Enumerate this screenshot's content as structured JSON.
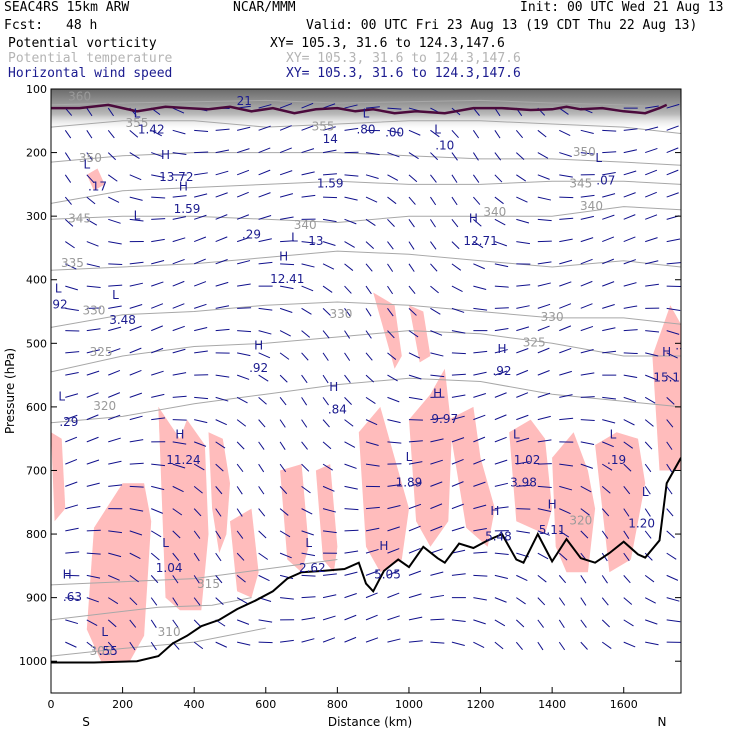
{
  "header": {
    "model": "SEAC4RS 15km ARW",
    "org": "NCAR/MMM",
    "init": "Init: 00 UTC Wed 21 Aug 13",
    "fcst_label": "Fcst:",
    "fcst_value": "48 h",
    "valid": "Valid: 00 UTC Fri 23 Aug 13 (19 CDT Thu 22 Aug 13)",
    "fields": [
      {
        "name": "Potential vorticity",
        "xy": "XY= 105.3, 31.6 to 124.3,147.6",
        "color": "#000000"
      },
      {
        "name": "Potential temperature",
        "xy": "XY= 105.3, 31.6 to 124.3,147.6",
        "color": "#b4b4b4"
      },
      {
        "name": "Horizontal wind speed",
        "xy": "XY= 105.3, 31.6 to 124.3,147.6",
        "color": "#1b1b8f"
      }
    ]
  },
  "chart_data": {
    "type": "cross-section",
    "xlabel": "Distance (km)",
    "ylabel": "Pressure (hPa)",
    "xlim": [
      0,
      1760
    ],
    "ylim": [
      1050,
      100
    ],
    "x_ticks": [
      0,
      200,
      400,
      600,
      800,
      1000,
      1200,
      1400,
      1600
    ],
    "y_ticks": [
      100,
      200,
      300,
      400,
      500,
      600,
      700,
      800,
      900,
      1000
    ],
    "end_labels": {
      "left": "S",
      "right": "N"
    },
    "colors": {
      "pv_shade": "#ffbcbc",
      "pv_contour": "#4b0a3c",
      "theta": "#a8a8a8",
      "wind": "#10108c",
      "terrain": "#000000"
    },
    "terrain": {
      "x": [
        0,
        120,
        240,
        300,
        340,
        380,
        420,
        470,
        520,
        570,
        620,
        660,
        700,
        760,
        820,
        860,
        880,
        900,
        930,
        970,
        1000,
        1040,
        1080,
        1100,
        1140,
        1180,
        1220,
        1260,
        1300,
        1320,
        1360,
        1400,
        1440,
        1480,
        1520,
        1560,
        1600,
        1640,
        1660,
        1700,
        1720,
        1760
      ],
      "p": [
        1002,
        1002,
        1000,
        992,
        972,
        960,
        945,
        935,
        918,
        905,
        890,
        870,
        860,
        858,
        855,
        845,
        878,
        890,
        858,
        840,
        852,
        820,
        838,
        845,
        815,
        822,
        810,
        800,
        840,
        845,
        800,
        843,
        808,
        838,
        845,
        830,
        812,
        832,
        837,
        810,
        720,
        680
      ]
    },
    "theta_isentropes": [
      {
        "value": 305,
        "x": [
          0,
          200,
          400,
          600
        ],
        "p": [
          992,
          980,
          970,
          948
        ]
      },
      {
        "value": 310,
        "x": [
          0,
          150,
          300,
          450,
          560
        ],
        "p": [
          935,
          925,
          915,
          912,
          900
        ]
      },
      {
        "value": 315,
        "x": [
          0,
          200,
          400,
          600,
          800
        ],
        "p": [
          880,
          875,
          870,
          855,
          840
        ]
      },
      {
        "value": 320,
        "x": [
          0,
          200,
          400,
          600,
          800,
          1000,
          1200,
          1400,
          1760
        ],
        "p": [
          625,
          615,
          595,
          580,
          565,
          555,
          560,
          580,
          600
        ]
      },
      {
        "value": 325,
        "x": [
          0,
          200,
          400,
          600,
          800,
          1000,
          1200,
          1400,
          1600,
          1760
        ],
        "p": [
          545,
          520,
          505,
          500,
          490,
          480,
          485,
          500,
          520,
          520
        ]
      },
      {
        "value": 330,
        "x": [
          0,
          200,
          400,
          600,
          800,
          1000,
          1200,
          1400,
          1600,
          1760
        ],
        "p": [
          475,
          455,
          450,
          440,
          435,
          440,
          450,
          460,
          460,
          470
        ]
      },
      {
        "value": 335,
        "x": [
          0,
          200,
          400,
          600,
          800,
          1000,
          1200,
          1400,
          1600,
          1760
        ],
        "p": [
          385,
          380,
          375,
          365,
          355,
          360,
          370,
          380,
          370,
          380
        ]
      },
      {
        "value": 340,
        "x": [
          0,
          200,
          400,
          600,
          800,
          1000,
          1200,
          1400,
          1600,
          1760
        ],
        "p": [
          305,
          300,
          300,
          305,
          310,
          300,
          300,
          300,
          285,
          290
        ]
      },
      {
        "value": 345,
        "x": [
          0,
          200,
          400,
          600,
          800,
          1000,
          1200,
          1400,
          1600,
          1760
        ],
        "p": [
          280,
          260,
          255,
          250,
          245,
          250,
          250,
          245,
          245,
          250
        ]
      },
      {
        "value": 350,
        "x": [
          0,
          200,
          400,
          600,
          800,
          1000,
          1200,
          1400,
          1600,
          1760
        ],
        "p": [
          215,
          205,
          200,
          200,
          200,
          205,
          210,
          210,
          215,
          220
        ]
      },
      {
        "value": 355,
        "x": [
          0,
          200,
          400,
          600,
          800,
          1000,
          1200,
          1400,
          1600,
          1760
        ],
        "p": [
          160,
          150,
          150,
          160,
          155,
          150,
          150,
          155,
          160,
          170
        ]
      },
      {
        "value": 360,
        "x": [
          0,
          200,
          400,
          600,
          800,
          1000,
          1200,
          1400,
          1600,
          1760
        ],
        "p": [
          125,
          122,
          120,
          118,
          122,
          120,
          118,
          122,
          125,
          130
        ]
      }
    ],
    "pv_tropopause": {
      "x": [
        0,
        80,
        160,
        240,
        320,
        380,
        440,
        500,
        560,
        620,
        680,
        740,
        800,
        850,
        900,
        960,
        1020,
        1100,
        1180,
        1260,
        1340,
        1400,
        1440,
        1480,
        1540,
        1600,
        1660,
        1700,
        1720
      ],
      "p": [
        130,
        130,
        125,
        135,
        128,
        130,
        132,
        128,
        135,
        130,
        138,
        132,
        130,
        135,
        132,
        138,
        135,
        138,
        130,
        130,
        133,
        132,
        128,
        132,
        130,
        135,
        138,
        130,
        125
      ]
    },
    "pv_shaded": [
      {
        "x": [
          0,
          30,
          40,
          10
        ],
        "p": [
          640,
          650,
          760,
          780
        ]
      },
      {
        "x": [
          120,
          200,
          260,
          280,
          260,
          220,
          140,
          100
        ],
        "p": [
          790,
          720,
          720,
          780,
          960,
          1000,
          1000,
          950
        ]
      },
      {
        "x": [
          300,
          360,
          380,
          430,
          440,
          420,
          360,
          320
        ],
        "p": [
          600,
          650,
          620,
          660,
          800,
          920,
          920,
          900
        ]
      },
      {
        "x": [
          440,
          480,
          500,
          490,
          470,
          450
        ],
        "p": [
          640,
          650,
          720,
          800,
          830,
          760
        ]
      },
      {
        "x": [
          500,
          560,
          580,
          560,
          520
        ],
        "p": [
          780,
          760,
          860,
          900,
          890
        ]
      },
      {
        "x": [
          640,
          700,
          720,
          700,
          660
        ],
        "p": [
          700,
          690,
          820,
          860,
          840
        ]
      },
      {
        "x": [
          740,
          780,
          800,
          790,
          760
        ],
        "p": [
          700,
          690,
          820,
          860,
          840
        ]
      },
      {
        "x": [
          860,
          920,
          960,
          1000,
          980,
          920,
          880
        ],
        "p": [
          640,
          600,
          680,
          760,
          840,
          860,
          820
        ]
      },
      {
        "x": [
          1000,
          1060,
          1100,
          1120,
          1110,
          1060,
          1020
        ],
        "p": [
          620,
          580,
          540,
          640,
          780,
          820,
          780
        ]
      },
      {
        "x": [
          1110,
          1180,
          1200,
          1240,
          1220,
          1160
        ],
        "p": [
          620,
          600,
          680,
          760,
          820,
          790
        ]
      },
      {
        "x": [
          1280,
          1340,
          1380,
          1400,
          1380,
          1300
        ],
        "p": [
          640,
          620,
          650,
          760,
          800,
          780
        ]
      },
      {
        "x": [
          1400,
          1460,
          1500,
          1520,
          1500,
          1440,
          1410
        ],
        "p": [
          680,
          640,
          700,
          760,
          860,
          860,
          820
        ]
      },
      {
        "x": [
          1520,
          1580,
          1640,
          1660,
          1620,
          1560
        ],
        "p": [
          660,
          640,
          650,
          720,
          840,
          860
        ]
      },
      {
        "x": [
          1680,
          1730,
          1760,
          1760,
          1700
        ],
        "p": [
          520,
          440,
          470,
          700,
          700
        ]
      },
      {
        "x": [
          900,
          960,
          980,
          960
        ],
        "p": [
          420,
          440,
          520,
          540
        ]
      },
      {
        "x": [
          1000,
          1040,
          1060,
          1030
        ],
        "p": [
          440,
          450,
          520,
          530
        ]
      },
      {
        "x": [
          100,
          130,
          150,
          120
        ],
        "p": [
          235,
          225,
          250,
          260
        ]
      },
      {
        "x": [
          300,
          320,
          330,
          305
        ],
        "p": [
          600,
          620,
          680,
          670
        ]
      }
    ],
    "annotations": [
      {
        "text": "L",
        "x": 30,
        "p": 590
      },
      {
        "text": ".29",
        "x": 50,
        "p": 630
      },
      {
        "text": "H",
        "x": 45,
        "p": 870
      },
      {
        "text": ".63",
        "x": 60,
        "p": 905
      },
      {
        "text": "L",
        "x": 150,
        "p": 960
      },
      {
        "text": ".55",
        "x": 160,
        "p": 990
      },
      {
        "text": "L",
        "x": 320,
        "p": 820
      },
      {
        "text": "1.04",
        "x": 330,
        "p": 860
      },
      {
        "text": "H",
        "x": 360,
        "p": 650
      },
      {
        "text": "11.24",
        "x": 370,
        "p": 690
      },
      {
        "text": "H",
        "x": 580,
        "p": 510
      },
      {
        "text": ".92",
        "x": 580,
        "p": 545
      },
      {
        "text": "L",
        "x": 720,
        "p": 820
      },
      {
        "text": "2.62",
        "x": 730,
        "p": 860
      },
      {
        "text": "H",
        "x": 790,
        "p": 575
      },
      {
        "text": ".84",
        "x": 800,
        "p": 610
      },
      {
        "text": "H",
        "x": 930,
        "p": 825
      },
      {
        "text": "5.05",
        "x": 940,
        "p": 870
      },
      {
        "text": "L",
        "x": 1000,
        "p": 685
      },
      {
        "text": "1.89",
        "x": 1000,
        "p": 725
      },
      {
        "text": "H",
        "x": 1080,
        "p": 585
      },
      {
        "text": "9.97",
        "x": 1100,
        "p": 625
      },
      {
        "text": "H",
        "x": 1260,
        "p": 515
      },
      {
        "text": ".92",
        "x": 1260,
        "p": 550
      },
      {
        "text": "L",
        "x": 1300,
        "p": 650
      },
      {
        "text": "1.02",
        "x": 1330,
        "p": 690
      },
      {
        "text": "3.98",
        "x": 1320,
        "p": 725
      },
      {
        "text": "H",
        "x": 1240,
        "p": 770
      },
      {
        "text": "5.48",
        "x": 1250,
        "p": 810
      },
      {
        "text": "H",
        "x": 1400,
        "p": 760
      },
      {
        "text": "5.11",
        "x": 1400,
        "p": 800
      },
      {
        "text": "L",
        "x": 1570,
        "p": 650
      },
      {
        "text": ".19",
        "x": 1580,
        "p": 690
      },
      {
        "text": "L",
        "x": 1660,
        "p": 740
      },
      {
        "text": "1.20",
        "x": 1650,
        "p": 790
      },
      {
        "text": "H",
        "x": 1720,
        "p": 520
      },
      {
        "text": "15.1",
        "x": 1720,
        "p": 560
      },
      {
        "text": ".5",
        "x": 1760,
        "p": 510
      },
      {
        "text": "L",
        "x": 20,
        "p": 420
      },
      {
        "text": ".92",
        "x": 20,
        "p": 445
      },
      {
        "text": "L",
        "x": 180,
        "p": 430
      },
      {
        "text": "3.48",
        "x": 200,
        "p": 470
      },
      {
        "text": "L",
        "x": 240,
        "p": 305
      },
      {
        "text": ".29",
        "x": 560,
        "p": 335
      },
      {
        "text": "L",
        "x": 680,
        "p": 340
      },
      {
        "text": "13",
        "x": 740,
        "p": 345
      },
      {
        "text": "H",
        "x": 650,
        "p": 370
      },
      {
        "text": "12.41",
        "x": 660,
        "p": 405
      },
      {
        "text": "H",
        "x": 370,
        "p": 260
      },
      {
        "text": "1.59",
        "x": 380,
        "p": 295
      },
      {
        "text": "H",
        "x": 320,
        "p": 210
      },
      {
        "text": "13.72",
        "x": 350,
        "p": 245
      },
      {
        "text": "L",
        "x": 100,
        "p": 225
      },
      {
        "text": ".17",
        "x": 130,
        "p": 260
      },
      {
        "text": "H",
        "x": 1180,
        "p": 310
      },
      {
        "text": "12.71",
        "x": 1200,
        "p": 345
      },
      {
        "text": "L",
        "x": 1530,
        "p": 215
      },
      {
        "text": ".07",
        "x": 1550,
        "p": 250
      },
      {
        "text": "L",
        "x": 1080,
        "p": 170
      },
      {
        "text": ".10",
        "x": 1100,
        "p": 195
      },
      {
        "text": "L",
        "x": 880,
        "p": 145
      },
      {
        "text": ".80",
        "x": 880,
        "p": 170
      },
      {
        "text": ".00",
        "x": 960,
        "p": 175
      },
      {
        "text": "L",
        "x": 240,
        "p": 145
      },
      {
        "text": "1.42",
        "x": 280,
        "p": 170
      },
      {
        "text": "14",
        "x": 780,
        "p": 185
      },
      {
        "text": "1.59",
        "x": 780,
        "p": 255
      },
      {
        "text": "21",
        "x": 540,
        "p": 125
      }
    ],
    "theta_labels": [
      {
        "text": "360",
        "x": 80,
        "p": 118
      },
      {
        "text": "355",
        "x": 240,
        "p": 160
      },
      {
        "text": "350",
        "x": 110,
        "p": 215
      },
      {
        "text": "345",
        "x": 80,
        "p": 310
      },
      {
        "text": "340",
        "x": 710,
        "p": 320
      },
      {
        "text": "340",
        "x": 1240,
        "p": 300
      },
      {
        "text": "335",
        "x": 60,
        "p": 380
      },
      {
        "text": "330",
        "x": 120,
        "p": 455
      },
      {
        "text": "330",
        "x": 810,
        "p": 460
      },
      {
        "text": "330",
        "x": 1400,
        "p": 465
      },
      {
        "text": "325",
        "x": 140,
        "p": 520
      },
      {
        "text": "325",
        "x": 1350,
        "p": 505
      },
      {
        "text": "320",
        "x": 150,
        "p": 605
      },
      {
        "text": "320",
        "x": 1480,
        "p": 785
      },
      {
        "text": "315",
        "x": 440,
        "p": 885
      },
      {
        "text": "310",
        "x": 330,
        "p": 960
      },
      {
        "text": "305",
        "x": 140,
        "p": 990
      },
      {
        "text": "345",
        "x": 1480,
        "p": 255
      },
      {
        "text": "355",
        "x": 760,
        "p": 165
      },
      {
        "text": "350",
        "x": 1490,
        "p": 205
      },
      {
        "text": "340",
        "x": 1510,
        "p": 290
      }
    ]
  }
}
